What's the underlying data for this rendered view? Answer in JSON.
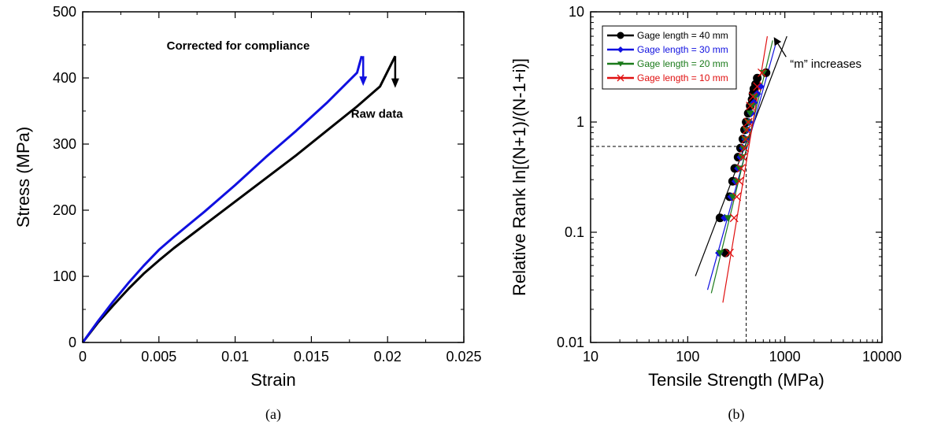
{
  "chart_data": [
    {
      "type": "line",
      "panel_label": "(a)",
      "xlabel": "Strain",
      "ylabel": "Stress (MPa)",
      "xlim": [
        0,
        0.025
      ],
      "ylim": [
        0,
        500
      ],
      "xticks": [
        0,
        0.005,
        0.01,
        0.015,
        0.02,
        0.025
      ],
      "xtick_labels": [
        "0",
        "0.005",
        "0.01",
        "0.015",
        "0.02",
        "0.025"
      ],
      "yticks": [
        0,
        100,
        200,
        300,
        400,
        500
      ],
      "ytick_labels": [
        "0",
        "100",
        "200",
        "300",
        "400",
        "500"
      ],
      "grid": false,
      "series": [
        {
          "name": "Raw data",
          "color": "#000000",
          "x": [
            0,
            0.001,
            0.002,
            0.003,
            0.004,
            0.005,
            0.006,
            0.008,
            0.01,
            0.012,
            0.014,
            0.016,
            0.018,
            0.0195,
            0.0205
          ],
          "y": [
            0,
            30,
            56,
            81,
            104,
            124,
            143,
            178,
            213,
            248,
            283,
            320,
            357,
            387,
            433
          ]
        },
        {
          "name": "Corrected for compliance",
          "color": "#1010e0",
          "x": [
            0,
            0.001,
            0.002,
            0.003,
            0.004,
            0.005,
            0.006,
            0.008,
            0.01,
            0.012,
            0.014,
            0.016,
            0.018,
            0.0183
          ],
          "y": [
            0,
            32,
            62,
            90,
            116,
            140,
            160,
            198,
            238,
            280,
            320,
            362,
            408,
            433
          ]
        }
      ],
      "annotations": [
        {
          "text": "Corrected for compliance",
          "x": 0.0102,
          "y": 443
        },
        {
          "text": "Raw data",
          "x": 0.0176,
          "y": 340
        }
      ],
      "arrows": [
        {
          "color": "#1010e0",
          "x": 0.0184,
          "y_from": 433,
          "y_to": 388
        },
        {
          "color": "#000000",
          "x": 0.0205,
          "y_from": 433,
          "y_to": 385
        }
      ]
    },
    {
      "type": "scatter",
      "panel_label": "(b)",
      "xlabel": "Tensile Strength (MPa)",
      "ylabel": "Relative Rank ln[(N+1)/(N-1+i)]",
      "xscale": "log",
      "yscale": "log",
      "xlim": [
        10,
        10000
      ],
      "ylim": [
        0.01,
        10
      ],
      "xticks": [
        10,
        100,
        1000,
        10000
      ],
      "xtick_labels": [
        "10",
        "100",
        "1000",
        "10000"
      ],
      "yticks": [
        0.01,
        0.1,
        1,
        10
      ],
      "ytick_labels": [
        "0.01",
        "0.1",
        "1",
        "10"
      ],
      "grid": false,
      "legend_position": "top-left",
      "reference_lines": {
        "x": 400,
        "y": 0.6,
        "style": "dashed"
      },
      "series": [
        {
          "name": "Gage length = 40 mm",
          "color": "#000000",
          "marker": "circle",
          "x": [
            245,
            215,
            270,
            290,
            305,
            330,
            350,
            370,
            385,
            400,
            420,
            440,
            460,
            470,
            480,
            500,
            520,
            640
          ],
          "y": [
            0.065,
            0.135,
            0.21,
            0.29,
            0.38,
            0.48,
            0.58,
            0.7,
            0.85,
            1.0,
            1.2,
            1.4,
            1.6,
            1.8,
            2.0,
            2.2,
            2.5,
            2.8
          ],
          "fit": {
            "x": [
              120,
              1050
            ],
            "y": [
              0.04,
              6.0
            ]
          }
        },
        {
          "name": "Gage length = 30 mm",
          "color": "#1010e0",
          "marker": "diamond",
          "x": [
            210,
            240,
            280,
            310,
            330,
            350,
            370,
            390,
            410,
            430,
            450,
            480,
            520,
            560
          ],
          "y": [
            0.065,
            0.135,
            0.21,
            0.29,
            0.38,
            0.48,
            0.58,
            0.7,
            0.85,
            1.0,
            1.2,
            1.5,
            1.8,
            2.1
          ],
          "fit": {
            "x": [
              160,
              800
            ],
            "y": [
              0.03,
              5.0
            ]
          }
        },
        {
          "name": "Gage length = 20 mm",
          "color": "#1a7a1a",
          "marker": "triangle-down",
          "x": [
            215,
            260,
            290,
            320,
            340,
            360,
            375,
            390,
            400,
            420,
            440,
            460,
            490,
            600
          ],
          "y": [
            0.065,
            0.135,
            0.21,
            0.29,
            0.38,
            0.48,
            0.58,
            0.7,
            0.85,
            1.0,
            1.2,
            1.4,
            1.7,
            2.8
          ],
          "fit": {
            "x": [
              175,
              750
            ],
            "y": [
              0.028,
              5.5
            ]
          }
        },
        {
          "name": "Gage length = 10 mm",
          "color": "#e01010",
          "marker": "x",
          "x": [
            270,
            300,
            320,
            340,
            355,
            370,
            385,
            395,
            405,
            420,
            440,
            470,
            520,
            580
          ],
          "y": [
            0.065,
            0.135,
            0.21,
            0.29,
            0.38,
            0.48,
            0.58,
            0.7,
            0.85,
            1.0,
            1.4,
            1.7,
            2.1,
            2.8
          ],
          "fit": {
            "x": [
              230,
              660
            ],
            "y": [
              0.023,
              6.0
            ]
          }
        }
      ],
      "annotations": [
        {
          "text": "“m” increases",
          "x": 1130,
          "y": 3.1
        }
      ],
      "arrows": [
        {
          "color": "#000000",
          "x_from": 1030,
          "y_from": 3.9,
          "x_to": 770,
          "y_to": 5.9
        }
      ]
    }
  ]
}
